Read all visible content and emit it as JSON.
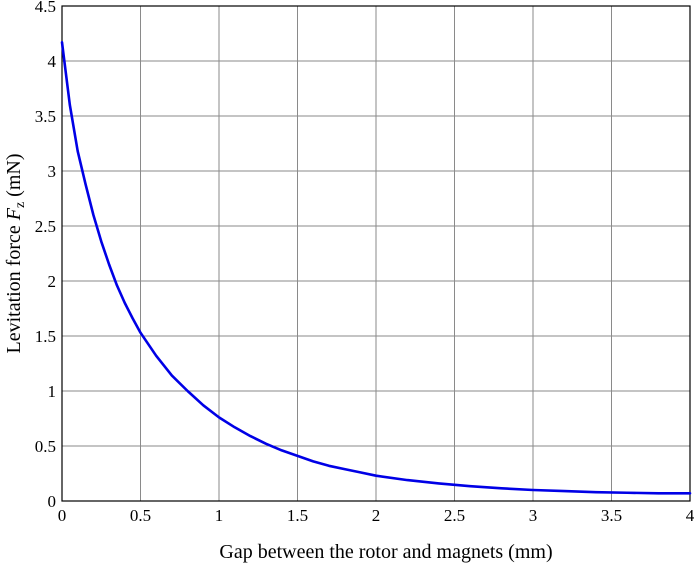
{
  "chart_data": {
    "type": "line",
    "title": "",
    "xlabel": "Gap between the rotor and magnets  (mm)",
    "ylabel": {
      "prefix": "Levitation force ",
      "symbol": "F",
      "subscript": "z",
      "suffix": " (mN)"
    },
    "xlim": [
      0,
      4
    ],
    "ylim": [
      0,
      4.5
    ],
    "xticks": [
      0,
      0.5,
      1,
      1.5,
      2,
      2.5,
      3,
      3.5,
      4
    ],
    "yticks": [
      0,
      0.5,
      1,
      1.5,
      2,
      2.5,
      3,
      3.5,
      4,
      4.5
    ],
    "grid": true,
    "line_color": "#0000e6",
    "series": [
      {
        "x": [
          0,
          0.05,
          0.1,
          0.15,
          0.2,
          0.25,
          0.3,
          0.35,
          0.4,
          0.45,
          0.5,
          0.6,
          0.7,
          0.8,
          0.9,
          1.0,
          1.1,
          1.2,
          1.3,
          1.4,
          1.5,
          1.6,
          1.7,
          1.8,
          1.9,
          2.0,
          2.2,
          2.4,
          2.6,
          2.8,
          3.0,
          3.2,
          3.4,
          3.6,
          3.8,
          4.0
        ],
        "values": [
          4.17,
          3.6,
          3.18,
          2.88,
          2.6,
          2.36,
          2.15,
          1.96,
          1.8,
          1.66,
          1.53,
          1.32,
          1.14,
          1.0,
          0.87,
          0.76,
          0.67,
          0.59,
          0.52,
          0.46,
          0.41,
          0.36,
          0.32,
          0.29,
          0.26,
          0.23,
          0.19,
          0.16,
          0.135,
          0.115,
          0.1,
          0.09,
          0.08,
          0.075,
          0.07,
          0.07
        ]
      }
    ]
  }
}
